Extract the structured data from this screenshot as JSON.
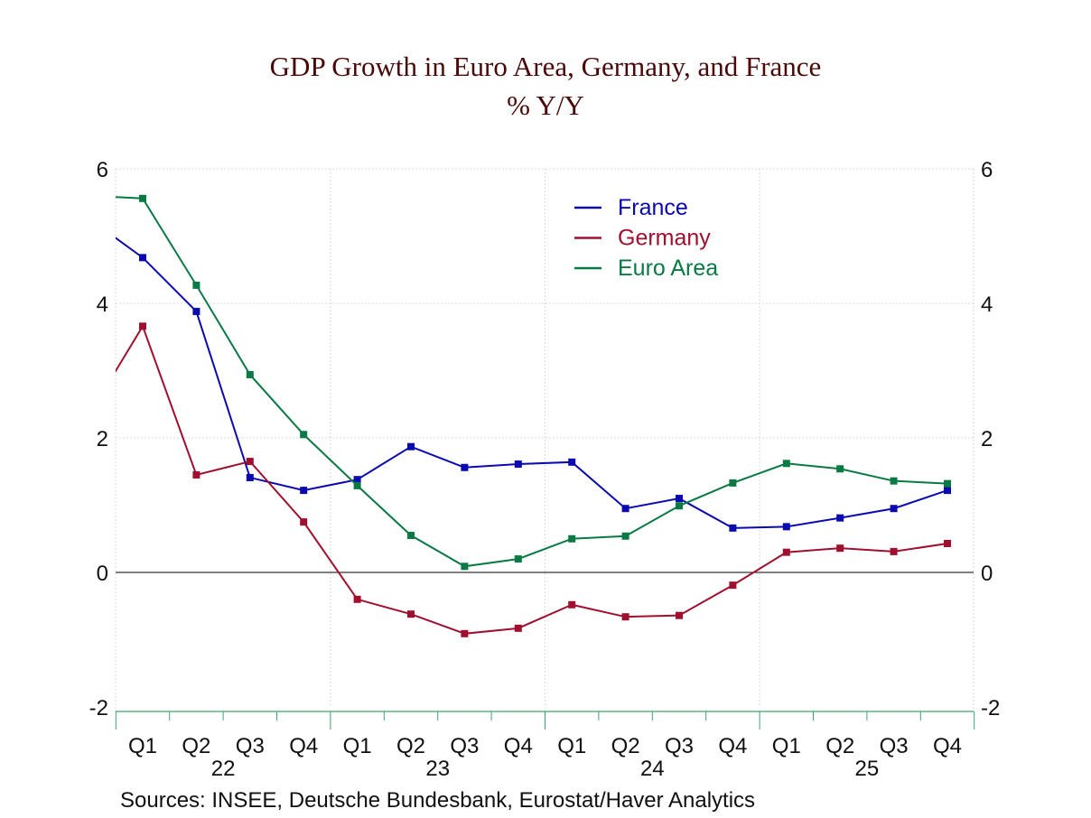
{
  "chart_data": {
    "type": "line",
    "title": "GDP Growth in Euro Area, Germany, and France",
    "subtitle": "% Y/Y",
    "source": "Sources:   INSEE, Deutsche Bundesbank, Eurostat/Haver Analytics",
    "ylim": [
      -2,
      6
    ],
    "yticks": [
      "6",
      "4",
      "2",
      "0",
      "-2"
    ],
    "quarter_labels": [
      "Q1",
      "Q2",
      "Q3",
      "Q4",
      "Q1",
      "Q2",
      "Q3",
      "Q4",
      "Q1",
      "Q2",
      "Q3",
      "Q4",
      "Q1",
      "Q2",
      "Q3",
      "Q4"
    ],
    "year_labels": [
      "22",
      "23",
      "24",
      "25"
    ],
    "grid": true,
    "legend": "top-center",
    "series": [
      {
        "name": "France",
        "color": "#0a0ab0",
        "prior": 5.26,
        "values": [
          4.68,
          3.88,
          1.41,
          1.22,
          1.38,
          1.87,
          1.56,
          1.61,
          1.64,
          0.95,
          1.1,
          0.66,
          0.68,
          0.81,
          0.95,
          1.22
        ]
      },
      {
        "name": "Germany",
        "color": "#a0102e",
        "prior": 2.34,
        "values": [
          3.66,
          1.45,
          1.65,
          0.75,
          -0.4,
          -0.62,
          -0.91,
          -0.83,
          -0.48,
          -0.66,
          -0.64,
          -0.19,
          0.3,
          0.36,
          0.31,
          0.43
        ]
      },
      {
        "name": "Euro Area",
        "color": "#0a7a44",
        "prior": 5.6,
        "values": [
          5.56,
          4.27,
          2.94,
          2.05,
          1.29,
          0.55,
          0.09,
          0.2,
          0.5,
          0.54,
          0.99,
          1.33,
          1.62,
          1.54,
          1.36,
          1.32
        ]
      }
    ]
  }
}
